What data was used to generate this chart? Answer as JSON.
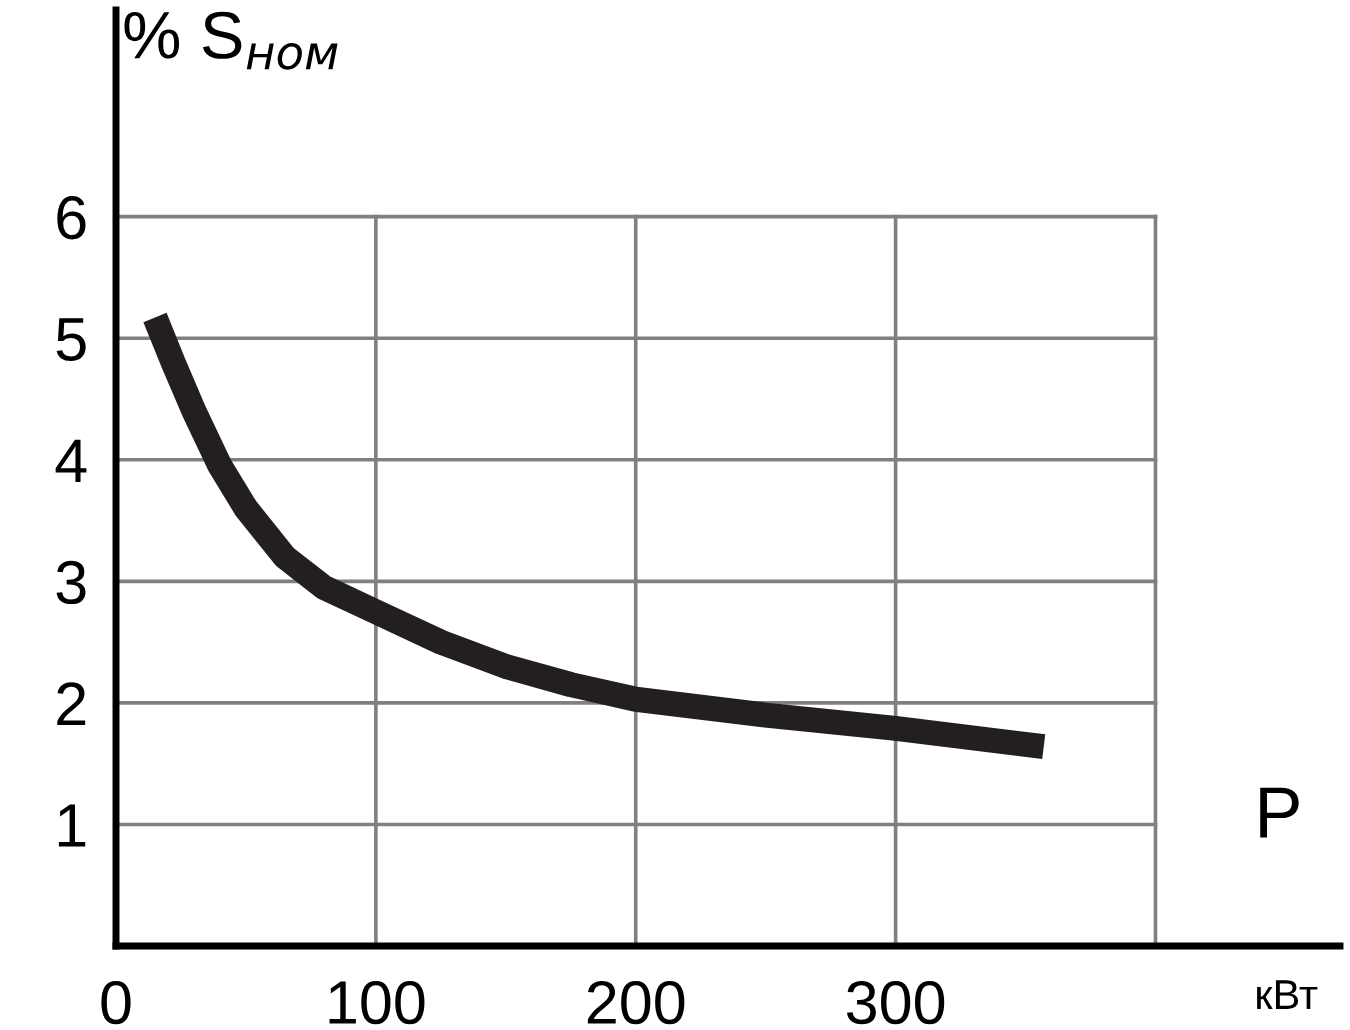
{
  "chart_data": {
    "type": "line",
    "xlabel": "P",
    "ylabel": "% S$_{ном}$",
    "annotations": [
      "кВт"
    ],
    "x": [
      15,
      22,
      30,
      40,
      50,
      65,
      80,
      100,
      125,
      150,
      175,
      200,
      250,
      300,
      357
    ],
    "series": [
      {
        "color": "#231f20",
        "values": [
          5.17,
          4.8,
          4.4,
          3.95,
          3.6,
          3.2,
          2.95,
          2.75,
          2.5,
          2.3,
          2.15,
          2.03,
          1.9,
          1.79,
          1.64
        ]
      }
    ],
    "xlim": [
      0,
      471
    ],
    "ylim": [
      0,
      7.7
    ],
    "xticks": [
      0,
      100,
      200,
      300,
      {
        "value": 400,
        "label": null
      }
    ],
    "yticks": [
      1,
      2,
      3,
      4,
      5,
      6
    ],
    "grid": true,
    "marker": "none",
    "line_style": "solid"
  }
}
